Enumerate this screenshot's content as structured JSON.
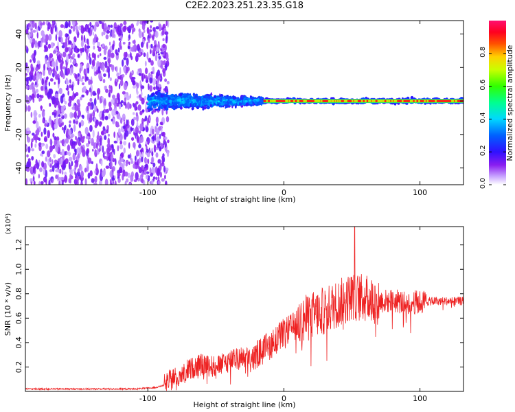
{
  "title": "C2E2.2023.251.23.35.G18",
  "colors": {
    "snr_line": "#ee2222",
    "axis": "#000000"
  },
  "chart_data": [
    {
      "type": "heatmap",
      "title": "",
      "xlabel": "Height of straight line (km)",
      "ylabel": "Frequency (Hz)",
      "xlim": [
        -190,
        132
      ],
      "ylim": [
        -50,
        48
      ],
      "x_ticks": [
        -100,
        0,
        100
      ],
      "y_ticks": [
        40,
        20,
        0,
        -20,
        -40
      ],
      "colorbar": {
        "label": "Normalized spectral amplitude",
        "range": [
          0.0,
          1.0
        ],
        "ticks": [
          0.0,
          0.2,
          0.4,
          0.6,
          0.8
        ],
        "tick_labels": [
          "0.0",
          "0.2",
          "0.4",
          "0.6",
          "0.8"
        ],
        "colormap": "rainbow (white–purple–blue–cyan–green–yellow–red–magenta)"
      },
      "regions": [
        {
          "x_range": [
            -190,
            -85
          ],
          "freq_center_hz": 0,
          "freq_spread_hz": 50,
          "amplitude": 0.15,
          "description_level": "noise"
        },
        {
          "x_range": [
            -100,
            -15
          ],
          "freq_center_hz": 0,
          "freq_spread_hz": 8,
          "amplitude": 0.3
        },
        {
          "x_range": [
            -15,
            132
          ],
          "freq_center_hz": 0,
          "freq_spread_hz": 2,
          "amplitude": 0.9
        }
      ]
    },
    {
      "type": "line",
      "title": "",
      "xlabel": "Height of straight line (km)",
      "ylabel": "SNR (10 * v/v)",
      "y_multiplier": "(x10⁴)",
      "xlim": [
        -190,
        132
      ],
      "ylim": [
        0,
        1.35
      ],
      "x_ticks": [
        -100,
        0,
        100
      ],
      "y_ticks": [
        0.2,
        0.4,
        0.6,
        0.8,
        1.0,
        1.2
      ],
      "y_tick_labels": [
        "0.2",
        "0.4",
        "0.6",
        "0.8",
        "1.0",
        "1.2"
      ],
      "series": [
        {
          "x": [
            -190,
            -170,
            -150,
            -130,
            -110,
            -95,
            -88,
            -80,
            -70,
            -60,
            -50,
            -40,
            -30,
            -20,
            -10,
            0,
            10,
            20,
            30,
            40,
            50,
            60,
            70,
            80,
            90,
            100,
            110,
            120,
            132
          ],
          "values": [
            0.02,
            0.02,
            0.02,
            0.02,
            0.02,
            0.03,
            0.05,
            0.12,
            0.18,
            0.22,
            0.2,
            0.25,
            0.28,
            0.3,
            0.38,
            0.48,
            0.55,
            0.62,
            0.66,
            0.72,
            0.78,
            0.76,
            0.74,
            0.74,
            0.73,
            0.73,
            0.74,
            0.74,
            0.74
          ],
          "peak_x": 52,
          "peak_value": 1.35
        }
      ]
    }
  ]
}
